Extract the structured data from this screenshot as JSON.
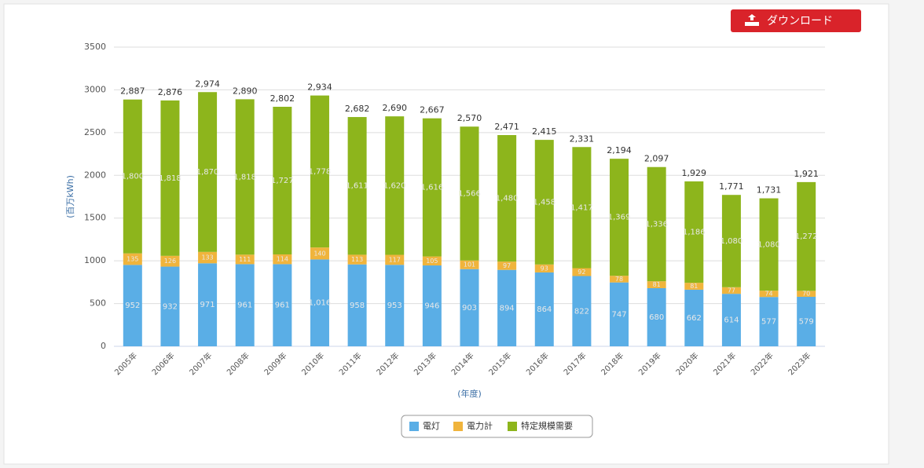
{
  "download_button": "ダウンロード",
  "chart_data": {
    "type": "stacked_bar",
    "categories": [
      "2005年",
      "2006年",
      "2007年",
      "2008年",
      "2009年",
      "2010年",
      "2011年",
      "2012年",
      "2013年",
      "2014年",
      "2015年",
      "2016年",
      "2017年",
      "2018年",
      "2019年",
      "2020年",
      "2021年",
      "2022年",
      "2023年"
    ],
    "series": [
      {
        "name": "電灯",
        "color": "#5aaee6",
        "values": [
          952,
          932,
          971,
          961,
          961,
          1016,
          958,
          953,
          946,
          903,
          894,
          864,
          822,
          747,
          680,
          662,
          614,
          577,
          579
        ],
        "value_labels": [
          "952",
          "932",
          "971",
          "961",
          "961",
          "1,016",
          "958",
          "953",
          "946",
          "903",
          "894",
          "864",
          "822",
          "747",
          "680",
          "662",
          "614",
          "577",
          "579"
        ]
      },
      {
        "name": "電力計",
        "color": "#f0b43c",
        "values": [
          135,
          126,
          133,
          111,
          114,
          140,
          113,
          117,
          105,
          101,
          97,
          93,
          92,
          78,
          81,
          81,
          77,
          74,
          70
        ]
      },
      {
        "name": "特定規模需要",
        "color": "#8db51c",
        "values": [
          1800,
          1818,
          1870,
          1818,
          1727,
          1778,
          1611,
          1620,
          1616,
          1566,
          1480,
          1458,
          1417,
          1369,
          1336,
          1186,
          1080,
          1080,
          1272
        ],
        "value_labels": [
          "1,800",
          "1,818",
          "1,870",
          "1,818",
          "1,727",
          "1,778",
          "1,611",
          "1,620",
          "1,616",
          "1,566",
          "1,480",
          "1,458",
          "1,417",
          "1,369",
          "1,336",
          "1,186",
          "1,080",
          "1,080",
          "1,272"
        ]
      }
    ],
    "totals": [
      2887,
      2876,
      2974,
      2890,
      2802,
      2934,
      2682,
      2690,
      2667,
      2570,
      2471,
      2415,
      2331,
      2194,
      2097,
      1929,
      1771,
      1731,
      1921
    ],
    "total_labels": [
      "2,887",
      "2,876",
      "2,974",
      "2,890",
      "2,802",
      "2,934",
      "2,682",
      "2,690",
      "2,667",
      "2,570",
      "2,471",
      "2,415",
      "2,331",
      "2,194",
      "2,097",
      "1,929",
      "1,771",
      "1,731",
      "1,921"
    ],
    "y_label": "(百万kWh)",
    "x_label": "(年度)",
    "ylim": [
      0,
      3500
    ],
    "yticks": [
      0,
      500,
      1000,
      1500,
      2000,
      2500,
      3000,
      3500
    ],
    "grid": true,
    "legend": "bottom"
  }
}
